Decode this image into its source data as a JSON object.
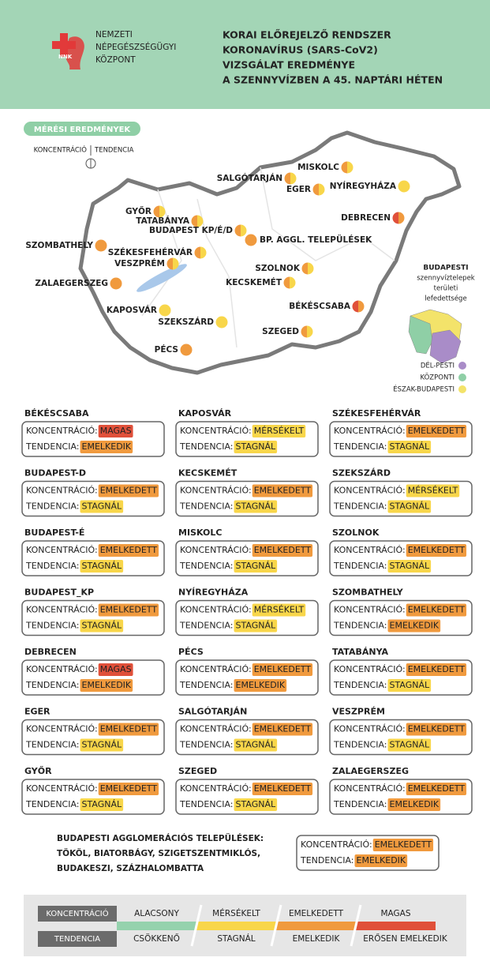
{
  "header": {
    "logo_text": "NNK",
    "org_lines": [
      "NEMZETI",
      "NÉPEGÉSZSÉGÜGYI",
      "KÖZPONT"
    ],
    "title_lines": [
      "KORAI ELŐREJELZŐ RENDSZER",
      "KORONAVÍRUS (SARS-CoV2)",
      "VIZSGÁLAT EREDMÉNYE",
      "A SZENNYVÍZBEN A 45. NAPTÁRI HÉTEN"
    ]
  },
  "map": {
    "badge": "MÉRÉSI EREDMÉNYEK",
    "legend_conc": "KONCENTRÁCIÓ",
    "legend_trend": "TENDENCIA",
    "cities": [
      {
        "name": "MISKOLC",
        "conc_color": "#f09a3e",
        "trend_color": "#f8d64a"
      },
      {
        "name": "SALGÓTARJÁN",
        "conc_color": "#f09a3e",
        "trend_color": "#f8d64a"
      },
      {
        "name": "EGER",
        "conc_color": "#f09a3e",
        "trend_color": "#f8d64a"
      },
      {
        "name": "NYÍREGYHÁZA",
        "conc_color": "#f8d64a",
        "trend_color": "#f8d64a"
      },
      {
        "name": "DEBRECEN",
        "conc_color": "#e0503a",
        "trend_color": "#f09a3e"
      },
      {
        "name": "GYŐR",
        "conc_color": "#f09a3e",
        "trend_color": "#f8d64a"
      },
      {
        "name": "TATABÁNYA",
        "conc_color": "#f09a3e",
        "trend_color": "#f8d64a"
      },
      {
        "name": "BUDAPEST KP/É/D",
        "conc_color": "#f09a3e",
        "trend_color": "#f8d64a"
      },
      {
        "name": "BP. AGGL. TELEPÜLÉSEK",
        "conc_color": "#f09a3e",
        "trend_color": "#f09a3e"
      },
      {
        "name": "SZOMBATHELY",
        "conc_color": "#f09a3e",
        "trend_color": "#f09a3e"
      },
      {
        "name": "SZÉKESFEHÉRVÁR",
        "conc_color": "#f09a3e",
        "trend_color": "#f8d64a"
      },
      {
        "name": "VESZPRÉM",
        "conc_color": "#f09a3e",
        "trend_color": "#f8d64a"
      },
      {
        "name": "SZOLNOK",
        "conc_color": "#f09a3e",
        "trend_color": "#f8d64a"
      },
      {
        "name": "ZALAEGERSZEG",
        "conc_color": "#f09a3e",
        "trend_color": "#f09a3e"
      },
      {
        "name": "KECSKEMÉT",
        "conc_color": "#f09a3e",
        "trend_color": "#f8d64a"
      },
      {
        "name": "BÉKÉSCSABA",
        "conc_color": "#e0503a",
        "trend_color": "#f09a3e"
      },
      {
        "name": "KAPOSVÁR",
        "conc_color": "#f8d64a",
        "trend_color": "#f8d64a"
      },
      {
        "name": "SZEKSZÁRD",
        "conc_color": "#f8d64a",
        "trend_color": "#f8d64a"
      },
      {
        "name": "SZEGED",
        "conc_color": "#f09a3e",
        "trend_color": "#f8d64a"
      },
      {
        "name": "PÉCS",
        "conc_color": "#f09a3e",
        "trend_color": "#f09a3e"
      }
    ],
    "inset_title_lines": [
      "BUDAPESTI",
      "szennyvíztelepek",
      "területi",
      "lefedettsége"
    ],
    "inset_legend": [
      {
        "label": "DÉL-PESTI",
        "color": "#a98cc8"
      },
      {
        "label": "KÖZPONTI",
        "color": "#8fcfa6"
      },
      {
        "label": "ÉSZAK-BUDAPESTI",
        "color": "#f3e36a"
      }
    ]
  },
  "cards": [
    {
      "city": "BÉKÉSCSABA",
      "rows": [
        {
          "label": "KONCENTRÁCIÓ:",
          "value": "MAGAS",
          "color": "#e0503a"
        },
        {
          "label": "TENDENCIA:",
          "value": "EMELKEDIK",
          "color": "#f09a3e"
        }
      ]
    },
    {
      "city": "BUDAPEST-D",
      "rows": [
        {
          "label": "KONCENTRÁCIÓ:",
          "value": "EMELKEDETT",
          "color": "#f09a3e"
        },
        {
          "label": "TENDENCIA:",
          "value": "STAGNÁL",
          "color": "#f8d64a"
        }
      ]
    },
    {
      "city": "BUDAPEST-É",
      "rows": [
        {
          "label": "KONCENTRÁCIÓ:",
          "value": "EMELKEDETT",
          "color": "#f09a3e"
        },
        {
          "label": "TENDENCIA:",
          "value": "STAGNÁL",
          "color": "#f8d64a"
        }
      ]
    },
    {
      "city": "BUDAPEST_KP",
      "rows": [
        {
          "label": "KONCENTRÁCIÓ:",
          "value": "EMELKEDETT",
          "color": "#f09a3e"
        },
        {
          "label": "TENDENCIA:",
          "value": "STAGNÁL",
          "color": "#f8d64a"
        }
      ]
    },
    {
      "city": "DEBRECEN",
      "rows": [
        {
          "label": "KONCENTRÁCIÓ:",
          "value": "MAGAS",
          "color": "#e0503a"
        },
        {
          "label": "TENDENCIA:",
          "value": "EMELKEDIK",
          "color": "#f09a3e"
        }
      ]
    },
    {
      "city": "EGER",
      "rows": [
        {
          "label": "KONCENTRÁCIÓ:",
          "value": "EMELKEDETT",
          "color": "#f09a3e"
        },
        {
          "label": "TENDENCIA:",
          "value": "STAGNÁL",
          "color": "#f8d64a"
        }
      ]
    },
    {
      "city": "GYŐR",
      "rows": [
        {
          "label": "KONCENTRÁCIÓ:",
          "value": "EMELKEDETT",
          "color": "#f09a3e"
        },
        {
          "label": "TENDENCIA:",
          "value": "STAGNÁL",
          "color": "#f8d64a"
        }
      ]
    },
    {
      "city": "KAPOSVÁR",
      "rows": [
        {
          "label": "KONCENTRÁCIÓ:",
          "value": "MÉRSÉKELT",
          "color": "#f8d64a"
        },
        {
          "label": "TENDENCIA:",
          "value": "STAGNÁL",
          "color": "#f8d64a"
        }
      ]
    },
    {
      "city": "KECSKEMÉT",
      "rows": [
        {
          "label": "KONCENTRÁCIÓ:",
          "value": "EMELKEDETT",
          "color": "#f09a3e"
        },
        {
          "label": "TENDENCIA:",
          "value": "STAGNÁL",
          "color": "#f8d64a"
        }
      ]
    },
    {
      "city": "MISKOLC",
      "rows": [
        {
          "label": "KONCENTRÁCIÓ:",
          "value": "EMELKEDETT",
          "color": "#f09a3e"
        },
        {
          "label": "TENDENCIA:",
          "value": "STAGNÁL",
          "color": "#f8d64a"
        }
      ]
    },
    {
      "city": "NYÍREGYHÁZA",
      "rows": [
        {
          "label": "KONCENTRÁCIÓ:",
          "value": "MÉRSÉKELT",
          "color": "#f8d64a"
        },
        {
          "label": "TENDENCIA:",
          "value": "STAGNÁL",
          "color": "#f8d64a"
        }
      ]
    },
    {
      "city": "PÉCS",
      "rows": [
        {
          "label": "KONCENTRÁCIÓ:",
          "value": "EMELKEDETT",
          "color": "#f09a3e"
        },
        {
          "label": "TENDENCIA:",
          "value": "EMELKEDIK",
          "color": "#f09a3e"
        }
      ]
    },
    {
      "city": "SALGÓTARJÁN",
      "rows": [
        {
          "label": "KONCENTRÁCIÓ:",
          "value": "EMELKEDETT",
          "color": "#f09a3e"
        },
        {
          "label": "TENDENCIA:",
          "value": "STAGNÁL",
          "color": "#f8d64a"
        }
      ]
    },
    {
      "city": "SZEGED",
      "rows": [
        {
          "label": "KONCENTRÁCIÓ:",
          "value": "EMELKEDETT",
          "color": "#f09a3e"
        },
        {
          "label": "TENDENCIA:",
          "value": "STAGNÁL",
          "color": "#f8d64a"
        }
      ]
    },
    {
      "city": "SZÉKESFEHÉRVÁR",
      "rows": [
        {
          "label": "KONCENTRÁCIÓ:",
          "value": "EMELKEDETT",
          "color": "#f09a3e"
        },
        {
          "label": "TENDENCIA:",
          "value": "STAGNÁL",
          "color": "#f8d64a"
        }
      ]
    },
    {
      "city": "SZEKSZÁRD",
      "rows": [
        {
          "label": "KONCENTRÁCIÓ:",
          "value": "MÉRSÉKELT",
          "color": "#f8d64a"
        },
        {
          "label": "TENDENCIA:",
          "value": "STAGNÁL",
          "color": "#f8d64a"
        }
      ]
    },
    {
      "city": "SZOLNOK",
      "rows": [
        {
          "label": "KONCENTRÁCIÓ:",
          "value": "EMELKEDETT",
          "color": "#f09a3e"
        },
        {
          "label": "TENDENCIA:",
          "value": "STAGNÁL",
          "color": "#f8d64a"
        }
      ]
    },
    {
      "city": "SZOMBATHELY",
      "rows": [
        {
          "label": "KONCENTRÁCIÓ:",
          "value": "EMELKEDETT",
          "color": "#f09a3e"
        },
        {
          "label": "TENDENCIA:",
          "value": "EMELKEDIK",
          "color": "#f09a3e"
        }
      ]
    },
    {
      "city": "TATABÁNYA",
      "rows": [
        {
          "label": "KONCENTRÁCIÓ:",
          "value": "EMELKEDETT",
          "color": "#f09a3e"
        },
        {
          "label": "TENDENCIA:",
          "value": "STAGNÁL",
          "color": "#f8d64a"
        }
      ]
    },
    {
      "city": "VESZPRÉM",
      "rows": [
        {
          "label": "KONCENTRÁCIÓ:",
          "value": "EMELKEDETT",
          "color": "#f09a3e"
        },
        {
          "label": "TENDENCIA:",
          "value": "STAGNÁL",
          "color": "#f8d64a"
        }
      ]
    },
    {
      "city": "ZALAEGERSZEG",
      "rows": [
        {
          "label": "KONCENTRÁCIÓ:",
          "value": "EMELKEDETT",
          "color": "#f09a3e"
        },
        {
          "label": "TENDENCIA:",
          "value": "EMELKEDIK",
          "color": "#f09a3e"
        }
      ]
    }
  ],
  "agglomeration": {
    "title_lines": [
      "BUDAPESTI AGGLOMERÁCIÓS TELEPÜLÉSEK:",
      "TÖKÖL, BIATORBÁGY, SZIGETSZENTMIKLÓS,",
      "BUDAKESZI, SZÁZHALOMBATTA"
    ],
    "rows": [
      {
        "label": "KONCENTRÁCIÓ:",
        "value": "EMELKEDETT",
        "color": "#f09a3e"
      },
      {
        "label": "TENDENCIA:",
        "value": "EMELKEDIK",
        "color": "#f09a3e"
      }
    ]
  },
  "scale": {
    "conc_label": "KONCENTRÁCIÓ",
    "trend_label": "TENDENCIA",
    "levels": [
      {
        "conc": "ALACSONY",
        "trend": "CSÖKKENŐ",
        "color": "#95d2ad"
      },
      {
        "conc": "MÉRSÉKELT",
        "trend": "STAGNÁL",
        "color": "#f8d64a"
      },
      {
        "conc": "EMELKEDETT",
        "trend": "EMELKEDIK",
        "color": "#f09a3e"
      },
      {
        "conc": "MAGAS",
        "trend": "ERŐSEN EMELKEDIK",
        "color": "#e0503a"
      }
    ]
  }
}
